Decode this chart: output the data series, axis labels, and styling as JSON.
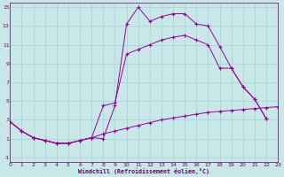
{
  "bg_color": "#c8e8e8",
  "line_color": "#990099",
  "xlim": [
    0,
    23
  ],
  "ylim": [
    -1.5,
    15.5
  ],
  "xticks": [
    0,
    1,
    2,
    3,
    4,
    5,
    6,
    7,
    8,
    9,
    10,
    11,
    12,
    13,
    14,
    15,
    16,
    17,
    18,
    19,
    20,
    21,
    22,
    23
  ],
  "yticks": [
    -1,
    1,
    3,
    5,
    7,
    9,
    11,
    13,
    15
  ],
  "xlabel": "Windchill (Refroidissement éolien,°C)",
  "line1_x": [
    0,
    1,
    2,
    3,
    4,
    5,
    6,
    7,
    8,
    9,
    10,
    11,
    12,
    13,
    14,
    15,
    16,
    17,
    18,
    19,
    20,
    21,
    22,
    23
  ],
  "line1_y": [
    2.8,
    1.8,
    1.1,
    0.8,
    0.5,
    0.5,
    0.8,
    1.1,
    1.5,
    1.8,
    2.1,
    2.4,
    2.7,
    3.0,
    3.2,
    3.4,
    3.6,
    3.8,
    3.9,
    4.0,
    4.1,
    4.2,
    4.3,
    4.4
  ],
  "line2_x": [
    0,
    1,
    2,
    3,
    4,
    5,
    6,
    7,
    8,
    9,
    10,
    11,
    12,
    13,
    14,
    15,
    16,
    17,
    18,
    19,
    20,
    21,
    22
  ],
  "line2_y": [
    2.8,
    1.8,
    1.1,
    0.8,
    0.5,
    0.5,
    0.8,
    1.1,
    1.0,
    4.5,
    13.2,
    15.0,
    13.5,
    14.0,
    14.3,
    14.3,
    13.2,
    13.0,
    10.8,
    8.5,
    6.5,
    5.2,
    3.1
  ],
  "line3_x": [
    0,
    1,
    2,
    3,
    4,
    5,
    6,
    7,
    8,
    9,
    10,
    11,
    12,
    13,
    14,
    15,
    16,
    17,
    18,
    19,
    20,
    21,
    22
  ],
  "line3_y": [
    2.8,
    1.8,
    1.1,
    0.8,
    0.5,
    0.5,
    0.8,
    1.1,
    4.5,
    4.8,
    10.0,
    10.5,
    11.0,
    11.5,
    11.8,
    12.0,
    11.5,
    11.0,
    8.5,
    8.5,
    6.5,
    5.2,
    3.1
  ]
}
